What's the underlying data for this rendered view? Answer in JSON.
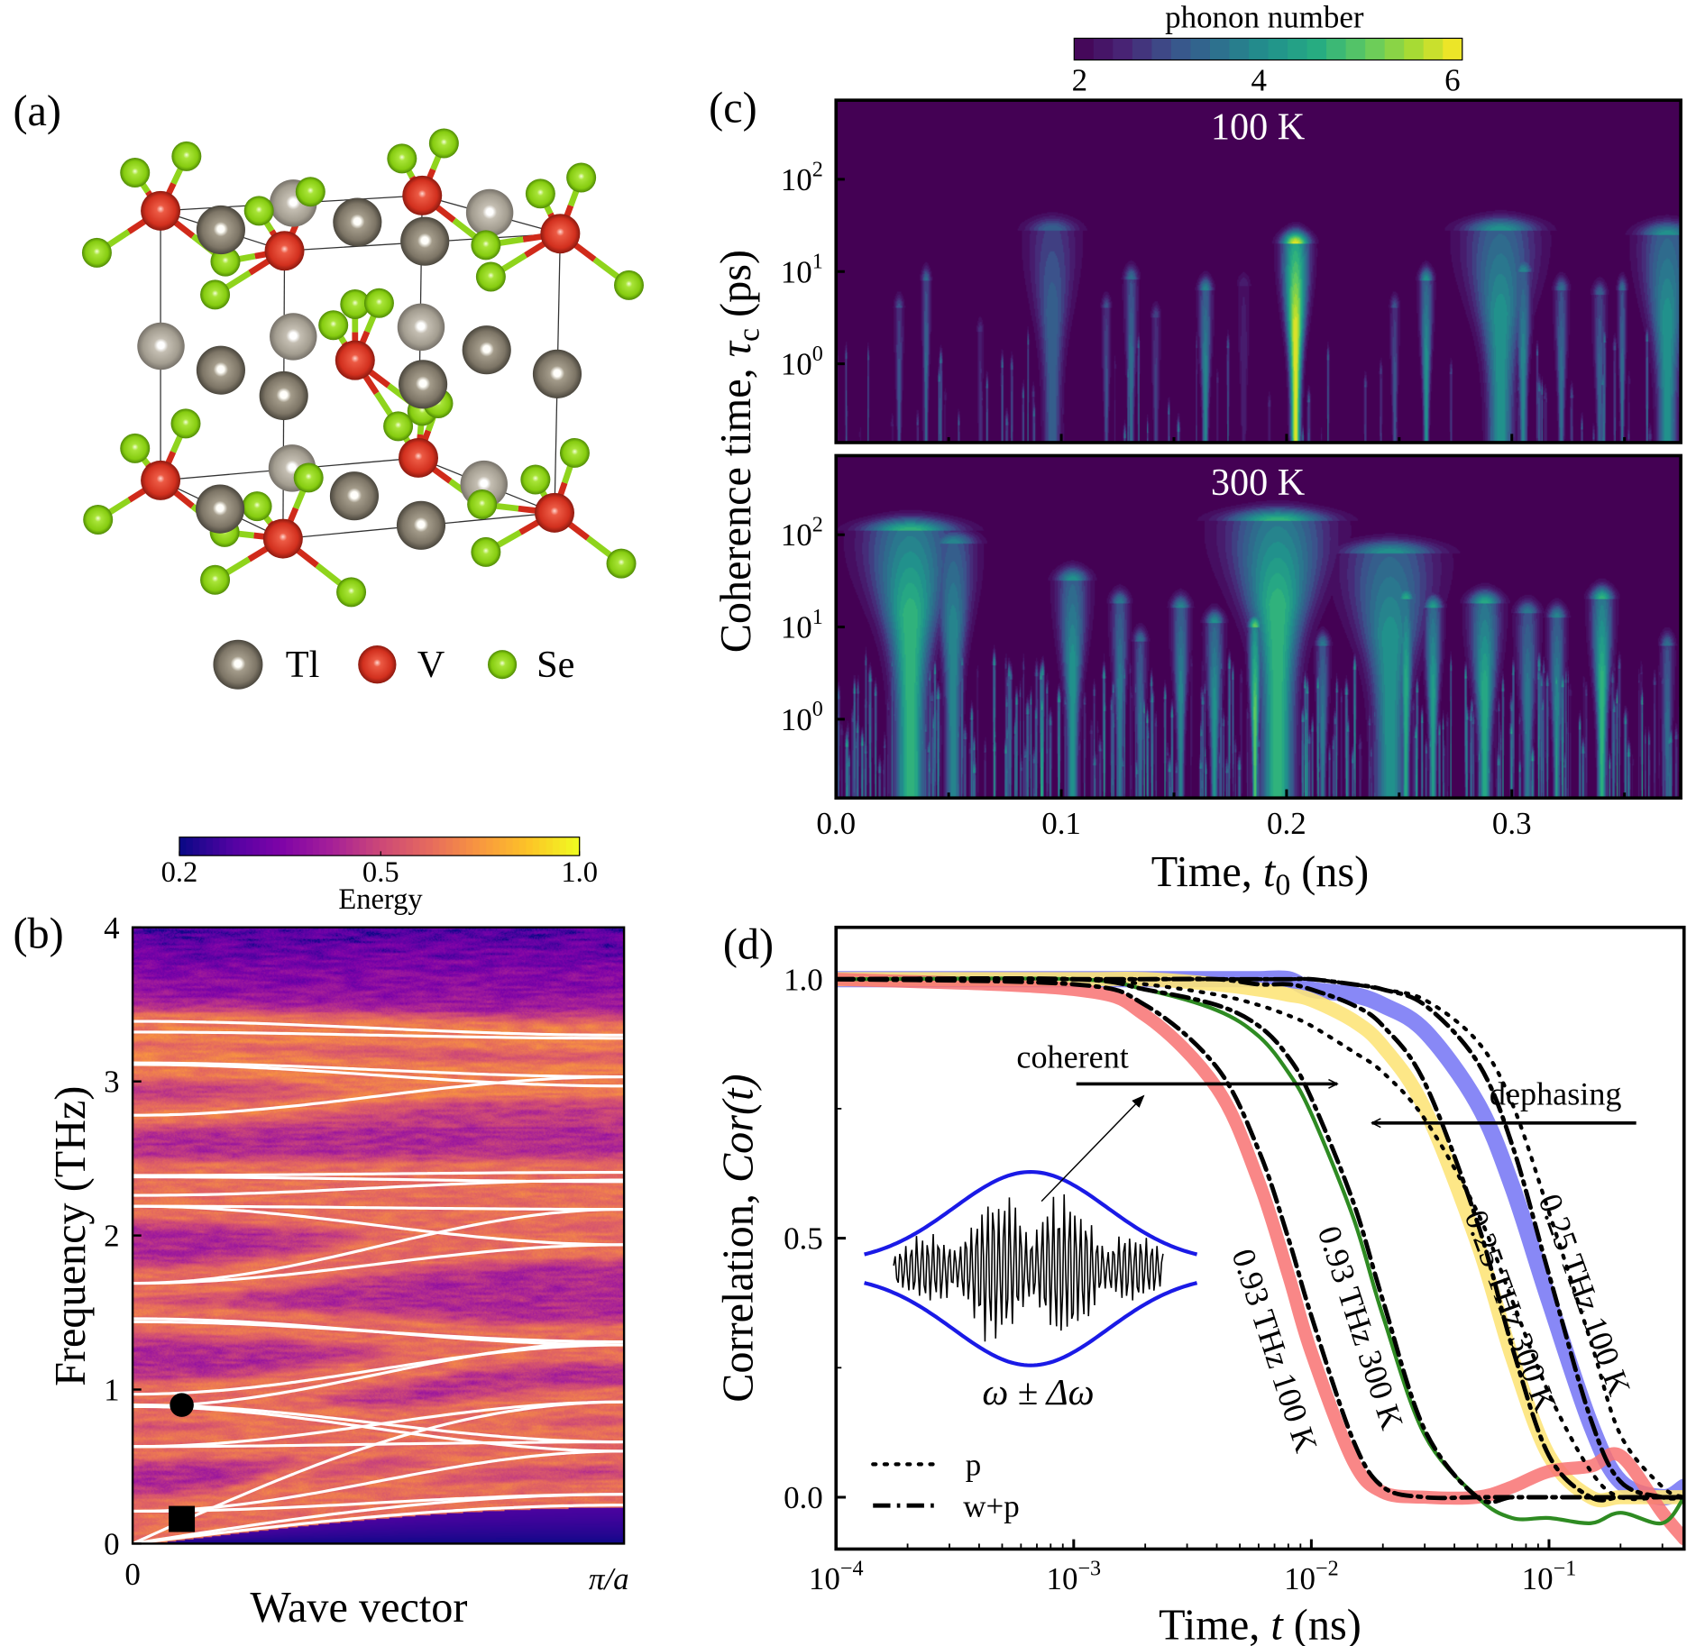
{
  "panels": {
    "a": "(a)",
    "b": "(b)",
    "c": "(c)",
    "d": "(d)"
  },
  "structure": {
    "legend": [
      {
        "element": "Tl",
        "color": "#857d6e"
      },
      {
        "element": "V",
        "color": "#d63a28"
      },
      {
        "element": "Se",
        "color": "#8fd41c"
      }
    ]
  },
  "chart_data": [
    {
      "panel": "b",
      "type": "heatmap",
      "xlabel": "Wave vector",
      "ylabel": "Frequency (THz)",
      "xlim": [
        0,
        1
      ],
      "x_ticks": [
        0,
        1
      ],
      "x_tick_labels": [
        "0",
        "π/a"
      ],
      "ylim": [
        0,
        4
      ],
      "y_ticks": [
        0,
        1,
        2,
        3,
        4
      ],
      "y_tick_labels": [
        "0",
        "1",
        "2",
        "3",
        "4"
      ],
      "colorbar": {
        "label": "Energy",
        "colormap": "plasma",
        "range": [
          0.2,
          1.0
        ],
        "ticks": [
          0.2,
          0.5,
          1.0
        ],
        "tick_labels": [
          "0.2",
          "0.5",
          "1.0"
        ],
        "location": "top"
      },
      "branch_color": "#ffffff",
      "branch_fields": [
        "freq_at_0_THz",
        "freq_at_zone_edge_THz"
      ],
      "optical_branches": [
        [
          3.39,
          3.3
        ],
        [
          3.32,
          3.28
        ],
        [
          3.12,
          3.03
        ],
        [
          3.11,
          2.97
        ],
        [
          2.78,
          3.03
        ],
        [
          2.39,
          2.41
        ],
        [
          2.38,
          2.35
        ],
        [
          2.26,
          2.36
        ],
        [
          2.19,
          2.17
        ],
        [
          2.19,
          1.94
        ],
        [
          1.69,
          2.17
        ],
        [
          1.69,
          1.94
        ],
        [
          1.46,
          1.29
        ],
        [
          1.44,
          1.31
        ],
        [
          0.97,
          1.29
        ],
        [
          0.89,
          1.31
        ],
        [
          0.9,
          0.66
        ],
        [
          0.89,
          0.6
        ],
        [
          0.63,
          0.92
        ],
        [
          0.63,
          0.66
        ],
        [
          0.21,
          0.6
        ],
        [
          0.21,
          0.32
        ]
      ],
      "acoustic_branches": [
        [
          0,
          0.92
        ],
        [
          0,
          0.32
        ],
        [
          0,
          0.25
        ]
      ],
      "markers": [
        {
          "shape": "circle",
          "wave_vector": 0.1,
          "frequency": 0.9,
          "color": "#000000"
        },
        {
          "shape": "square",
          "wave_vector": 0.1,
          "frequency": 0.16,
          "color": "#000000"
        }
      ]
    },
    {
      "panel": "c",
      "type": "heatmap",
      "colorbar": {
        "label": "phonon number",
        "colormap": "viridis",
        "range": [
          2,
          6
        ],
        "ticks": [
          2,
          4,
          6
        ],
        "tick_labels": [
          "2",
          "4",
          "6"
        ],
        "levels": 20,
        "location": "top"
      },
      "xlabel": {
        "prefix": "Time, ",
        "var": "t",
        "sub": "0",
        "suffix": " (ns)"
      },
      "ylabel": {
        "prefix": "Coherence time, ",
        "var": "τ",
        "sub": "c",
        "suffix": " (ps)"
      },
      "xlim": [
        0,
        0.375
      ],
      "x_ticks": [
        0,
        0.1,
        0.2,
        0.3
      ],
      "x_tick_labels": [
        "0.0",
        "0.1",
        "0.2",
        "0.3"
      ],
      "yscale": "log",
      "ylim": [
        0.14,
        720
      ],
      "y_ticks": [
        100,
        10,
        1
      ],
      "y_tick_labels": [
        {
          "base": "10",
          "exp": "2"
        },
        {
          "base": "10",
          "exp": "1"
        },
        {
          "base": "10",
          "exp": "0"
        }
      ],
      "plume_fields": [
        "t0_ns",
        "tau_max_ps",
        "peak_phonon_number",
        "width_ns"
      ],
      "subplots": [
        {
          "title": "100 K",
          "plumes": [
            [
              0.028,
              4,
              3.2,
              0.002
            ],
            [
              0.04,
              8,
              3.5,
              0.002
            ],
            [
              0.064,
              2.2,
              2.8,
              0.0015
            ],
            [
              0.096,
              28,
              3.4,
              0.011
            ],
            [
              0.12,
              4,
              3.2,
              0.002
            ],
            [
              0.131,
              8.3,
              3.6,
              0.003
            ],
            [
              0.142,
              3.2,
              3.0,
              0.002
            ],
            [
              0.164,
              6.3,
              4.0,
              0.003
            ],
            [
              0.181,
              7,
              2.6,
              0.003
            ],
            [
              0.204,
              20,
              6.0,
              0.006
            ],
            [
              0.248,
              4,
              3.2,
              0.002
            ],
            [
              0.262,
              8,
              4.2,
              0.003
            ],
            [
              0.295,
              28,
              4.2,
              0.016
            ],
            [
              0.305,
              10,
              4.0,
              0.004
            ],
            [
              0.322,
              6.3,
              3.6,
              0.003
            ],
            [
              0.339,
              5.6,
              3.4,
              0.003
            ],
            [
              0.349,
              6.3,
              3.6,
              0.002
            ],
            [
              0.369,
              25,
              4.2,
              0.012
            ]
          ]
        },
        {
          "title": "300 K",
          "plumes": [
            [
              0.033,
              110,
              4.8,
              0.02
            ],
            [
              0.052,
              80,
              4.0,
              0.01
            ],
            [
              0.105,
              32,
              4.2,
              0.007
            ],
            [
              0.126,
              18,
              3.8,
              0.004
            ],
            [
              0.135,
              7,
              3.6,
              0.003
            ],
            [
              0.153,
              16,
              4.0,
              0.004
            ],
            [
              0.168,
              11,
              4.2,
              0.004
            ],
            [
              0.186,
              10,
              5.2,
              0.003
            ],
            [
              0.196,
              140,
              4.8,
              0.022
            ],
            [
              0.216,
              6.3,
              3.8,
              0.003
            ],
            [
              0.246,
              63,
              4.2,
              0.02
            ],
            [
              0.253,
              20,
              4.6,
              0.004
            ],
            [
              0.265,
              16,
              4.4,
              0.004
            ],
            [
              0.288,
              18,
              4.6,
              0.007
            ],
            [
              0.307,
              14,
              3.8,
              0.005
            ],
            [
              0.32,
              12.6,
              4.0,
              0.004
            ],
            [
              0.34,
              20,
              4.8,
              0.005
            ],
            [
              0.369,
              6.3,
              3.6,
              0.003
            ]
          ]
        }
      ]
    },
    {
      "panel": "d",
      "type": "line",
      "xlabel": {
        "prefix": "Time, ",
        "var": "t",
        "suffix": " (ns)"
      },
      "ylabel": {
        "prefix": "Correlation, ",
        "var": "Cor(t)"
      },
      "xscale": "log",
      "xlim": [
        0.0001,
        0.37
      ],
      "x_ticks": [
        0.0001,
        0.001,
        0.01,
        0.1
      ],
      "x_tick_labels": [
        {
          "base": "10",
          "exp": "−4"
        },
        {
          "base": "10",
          "exp": "−3"
        },
        {
          "base": "10",
          "exp": "−2"
        },
        {
          "base": "10",
          "exp": "−1"
        }
      ],
      "ylim": [
        -0.1,
        1.1
      ],
      "y_ticks": [
        0.0,
        0.5,
        1.0
      ],
      "y_tick_labels": [
        "0.0",
        "0.5",
        "1.0"
      ],
      "x": [
        0.0001,
        0.001,
        0.002,
        0.004,
        0.006,
        0.008,
        0.01,
        0.015,
        0.02,
        0.03,
        0.05,
        0.07,
        0.1,
        0.15,
        0.2,
        0.3,
        0.37
      ],
      "series": [
        {
          "name": "0.93 THz 100 K",
          "color": "#f87272",
          "values": [
            1.0,
            0.98,
            0.93,
            0.79,
            0.61,
            0.43,
            0.28,
            0.07,
            0.01,
            0.0,
            0.0,
            0.02,
            0.05,
            0.06,
            0.08,
            -0.03,
            -0.08
          ]
        },
        {
          "name": "0.93 THz 300 K",
          "color": "#2e8b22",
          "values": [
            1.0,
            1.0,
            0.98,
            0.94,
            0.89,
            0.82,
            0.74,
            0.54,
            0.35,
            0.12,
            0.0,
            -0.04,
            -0.04,
            -0.05,
            -0.03,
            -0.05,
            0.0
          ]
        },
        {
          "name": "0.25 THz 300 K",
          "color": "#fde47a",
          "values": [
            1.0,
            1.0,
            1.0,
            0.99,
            0.98,
            0.97,
            0.96,
            0.92,
            0.87,
            0.75,
            0.49,
            0.27,
            0.08,
            0.0,
            0.0,
            0.0,
            0.0
          ]
        },
        {
          "name": "0.25 THz 100 K",
          "color": "#7b7bf5",
          "values": [
            1.0,
            1.0,
            1.0,
            1.0,
            1.0,
            1.0,
            0.98,
            0.97,
            0.95,
            0.9,
            0.76,
            0.6,
            0.38,
            0.14,
            0.03,
            0.0,
            0.02
          ]
        }
      ],
      "fits": [
        {
          "name": "w+p",
          "of": "0.93 THz 100 K",
          "values": [
            1.0,
            0.99,
            0.95,
            0.83,
            0.67,
            0.5,
            0.35,
            0.11,
            0.02,
            0.0,
            0.0,
            0.0,
            0.0,
            0.0,
            0.0,
            0.0,
            0.0
          ]
        },
        {
          "name": "w+p",
          "of": "0.93 THz 300 K",
          "values": [
            1.0,
            1.0,
            0.98,
            0.95,
            0.91,
            0.85,
            0.77,
            0.57,
            0.38,
            0.13,
            0.0,
            0.0,
            0.0,
            0.0,
            0.0,
            0.0,
            0.0
          ]
        },
        {
          "name": "w+p",
          "of": "0.25 THz 300 K",
          "values": [
            1.0,
            1.0,
            1.0,
            1.0,
            0.99,
            0.99,
            0.98,
            0.95,
            0.91,
            0.8,
            0.53,
            0.29,
            0.08,
            0.0,
            0.0,
            0.0,
            0.0
          ]
        },
        {
          "name": "w+p",
          "of": "0.25 THz 100 K",
          "values": [
            1.0,
            1.0,
            1.0,
            1.0,
            1.0,
            1.0,
            1.0,
            0.99,
            0.98,
            0.95,
            0.84,
            0.68,
            0.43,
            0.15,
            0.03,
            0.0,
            0.0
          ]
        },
        {
          "name": "p",
          "of": "0.25 THz 300 K",
          "values": [
            1.0,
            1.0,
            0.99,
            0.97,
            0.95,
            0.93,
            0.91,
            0.86,
            0.82,
            0.73,
            0.55,
            0.38,
            0.2,
            0.05,
            0.0,
            0.0,
            0.0
          ]
        },
        {
          "name": "p",
          "of": "0.25 THz 100 K",
          "values": [
            1.0,
            1.0,
            1.0,
            1.0,
            1.0,
            1.0,
            1.0,
            0.99,
            0.98,
            0.96,
            0.88,
            0.76,
            0.55,
            0.3,
            0.12,
            0.02,
            0.0
          ]
        }
      ],
      "legend": {
        "placement": "lower-left",
        "entries": [
          {
            "label": "p",
            "style": "dotted"
          },
          {
            "label": "w+p",
            "style": "dash-dot"
          }
        ]
      },
      "annotations": {
        "coherent": "coherent",
        "dephasing": "dephasing",
        "inset_label": "ω ± Δω",
        "inset_envelope_color": "#1a1ae6"
      }
    }
  ]
}
